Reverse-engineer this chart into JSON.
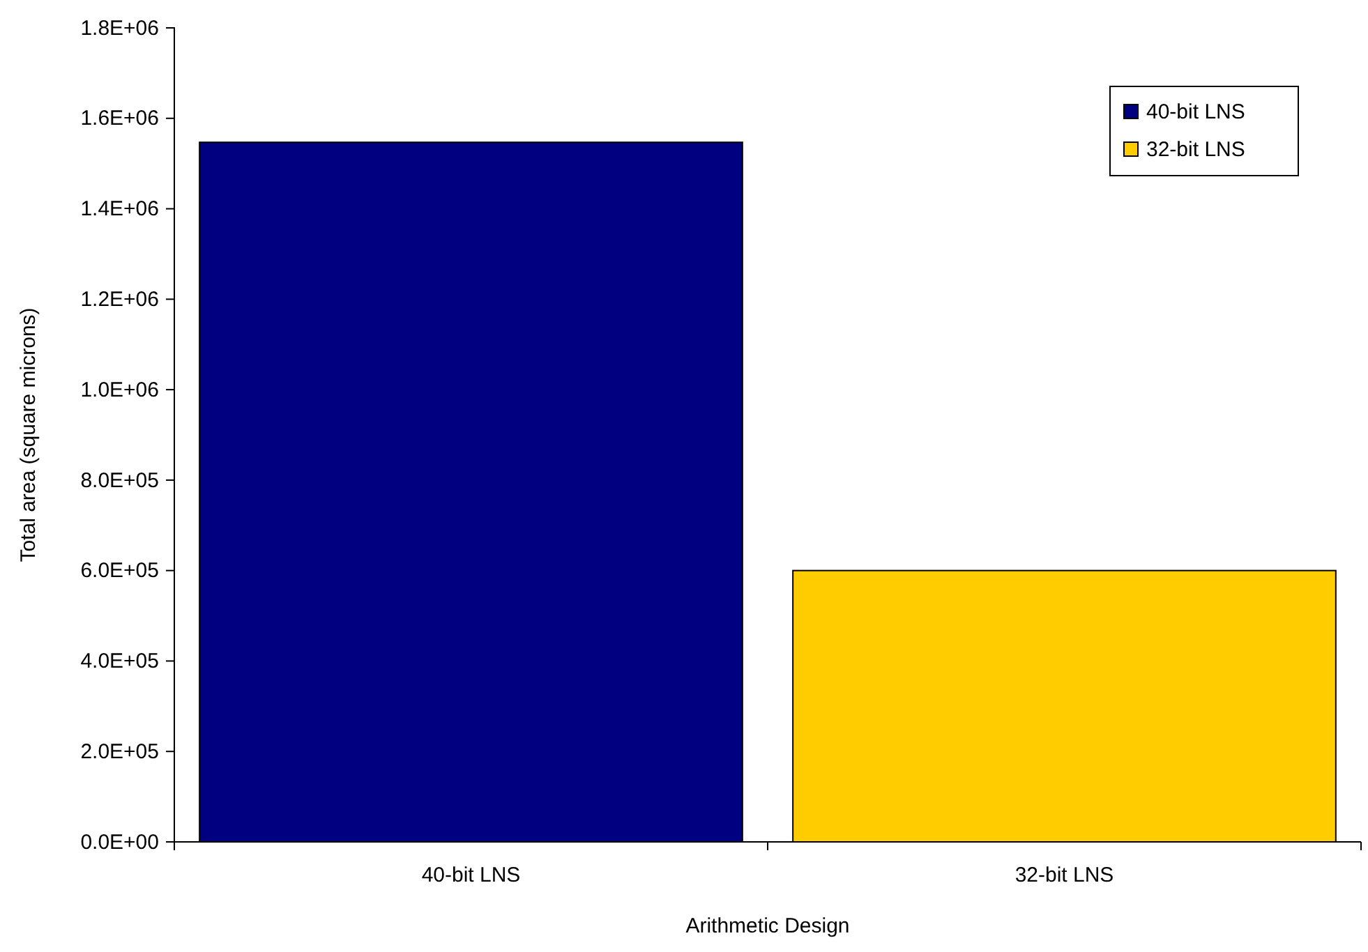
{
  "chart_data": {
    "type": "bar",
    "xlabel": "Arithmetic Design",
    "ylabel": "Total area (square microns)",
    "categories": [
      "40-bit LNS",
      "32-bit LNS"
    ],
    "series": [
      {
        "name": "40-bit LNS",
        "color": "#000080",
        "values": [
          1547000,
          null
        ]
      },
      {
        "name": "32-bit LNS",
        "color": "#ffcc00",
        "values": [
          null,
          600000
        ]
      }
    ],
    "ylim": [
      0,
      1800000
    ],
    "yticks": [
      {
        "value": 0,
        "label": "0.0E+00"
      },
      {
        "value": 200000,
        "label": "2.0E+05"
      },
      {
        "value": 400000,
        "label": "4.0E+05"
      },
      {
        "value": 600000,
        "label": "6.0E+05"
      },
      {
        "value": 800000,
        "label": "8.0E+05"
      },
      {
        "value": 1000000,
        "label": "1.0E+06"
      },
      {
        "value": 1200000,
        "label": "1.2E+06"
      },
      {
        "value": 1400000,
        "label": "1.4E+06"
      },
      {
        "value": 1600000,
        "label": "1.6E+06"
      },
      {
        "value": 1800000,
        "label": "1.8E+06"
      }
    ],
    "grid": false,
    "legend": "top right"
  }
}
